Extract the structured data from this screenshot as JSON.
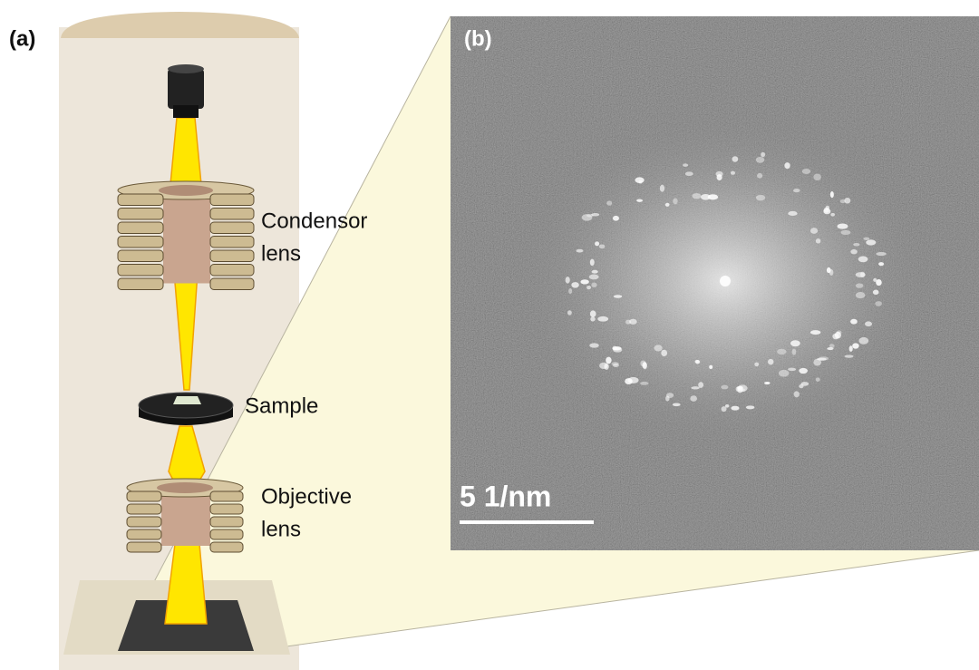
{
  "panel_a": {
    "label": "(a)",
    "components": [
      {
        "name": [
          "Condensor",
          "lens"
        ]
      },
      {
        "name": [
          "Sample"
        ]
      },
      {
        "name": [
          "Objective",
          "lens"
        ]
      }
    ]
  },
  "panel_b": {
    "label": "(b)",
    "scale_bar": "5 1/nm"
  }
}
